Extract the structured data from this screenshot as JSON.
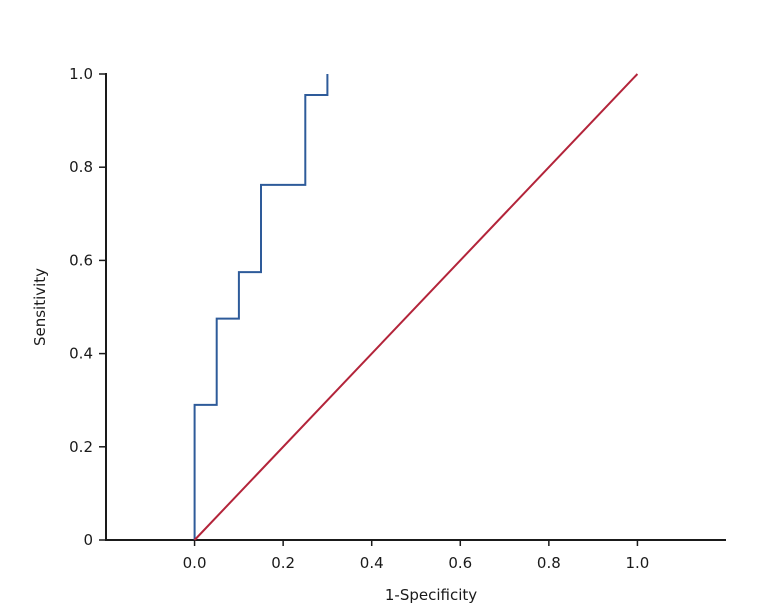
{
  "chart_data": {
    "type": "line",
    "title": "",
    "xlabel": "1-Specificity",
    "ylabel": "Sensitivity",
    "xlim": [
      -0.2,
      1.2
    ],
    "ylim": [
      0,
      1.0
    ],
    "x_ticks": [
      {
        "value": 0.0,
        "label": "0.0"
      },
      {
        "value": 0.2,
        "label": "0.2"
      },
      {
        "value": 0.4,
        "label": "0.4"
      },
      {
        "value": 0.6,
        "label": "0.6"
      },
      {
        "value": 0.8,
        "label": "0.8"
      },
      {
        "value": 1.0,
        "label": "1.0"
      }
    ],
    "y_ticks": [
      {
        "value": 0.0,
        "label": "0"
      },
      {
        "value": 0.2,
        "label": "0.2"
      },
      {
        "value": 0.4,
        "label": "0.4"
      },
      {
        "value": 0.6,
        "label": "0.6"
      },
      {
        "value": 0.8,
        "label": "0.8"
      },
      {
        "value": 1.0,
        "label": "1.0"
      }
    ],
    "grid": false,
    "series": [
      {
        "color": "#2e5b9a",
        "step": true,
        "points": [
          {
            "x": 0.0,
            "y": 0.0
          },
          {
            "x": 0.0,
            "y": 0.29
          },
          {
            "x": 0.05,
            "y": 0.29
          },
          {
            "x": 0.05,
            "y": 0.475
          },
          {
            "x": 0.1,
            "y": 0.475
          },
          {
            "x": 0.1,
            "y": 0.575
          },
          {
            "x": 0.15,
            "y": 0.575
          },
          {
            "x": 0.15,
            "y": 0.762
          },
          {
            "x": 0.25,
            "y": 0.762
          },
          {
            "x": 0.25,
            "y": 0.955
          },
          {
            "x": 0.3,
            "y": 0.955
          },
          {
            "x": 0.3,
            "y": 1.0
          }
        ]
      },
      {
        "color": "#b3243a",
        "step": false,
        "points": [
          {
            "x": 0.0,
            "y": 0.0
          },
          {
            "x": 1.0,
            "y": 1.0
          }
        ]
      }
    ]
  }
}
